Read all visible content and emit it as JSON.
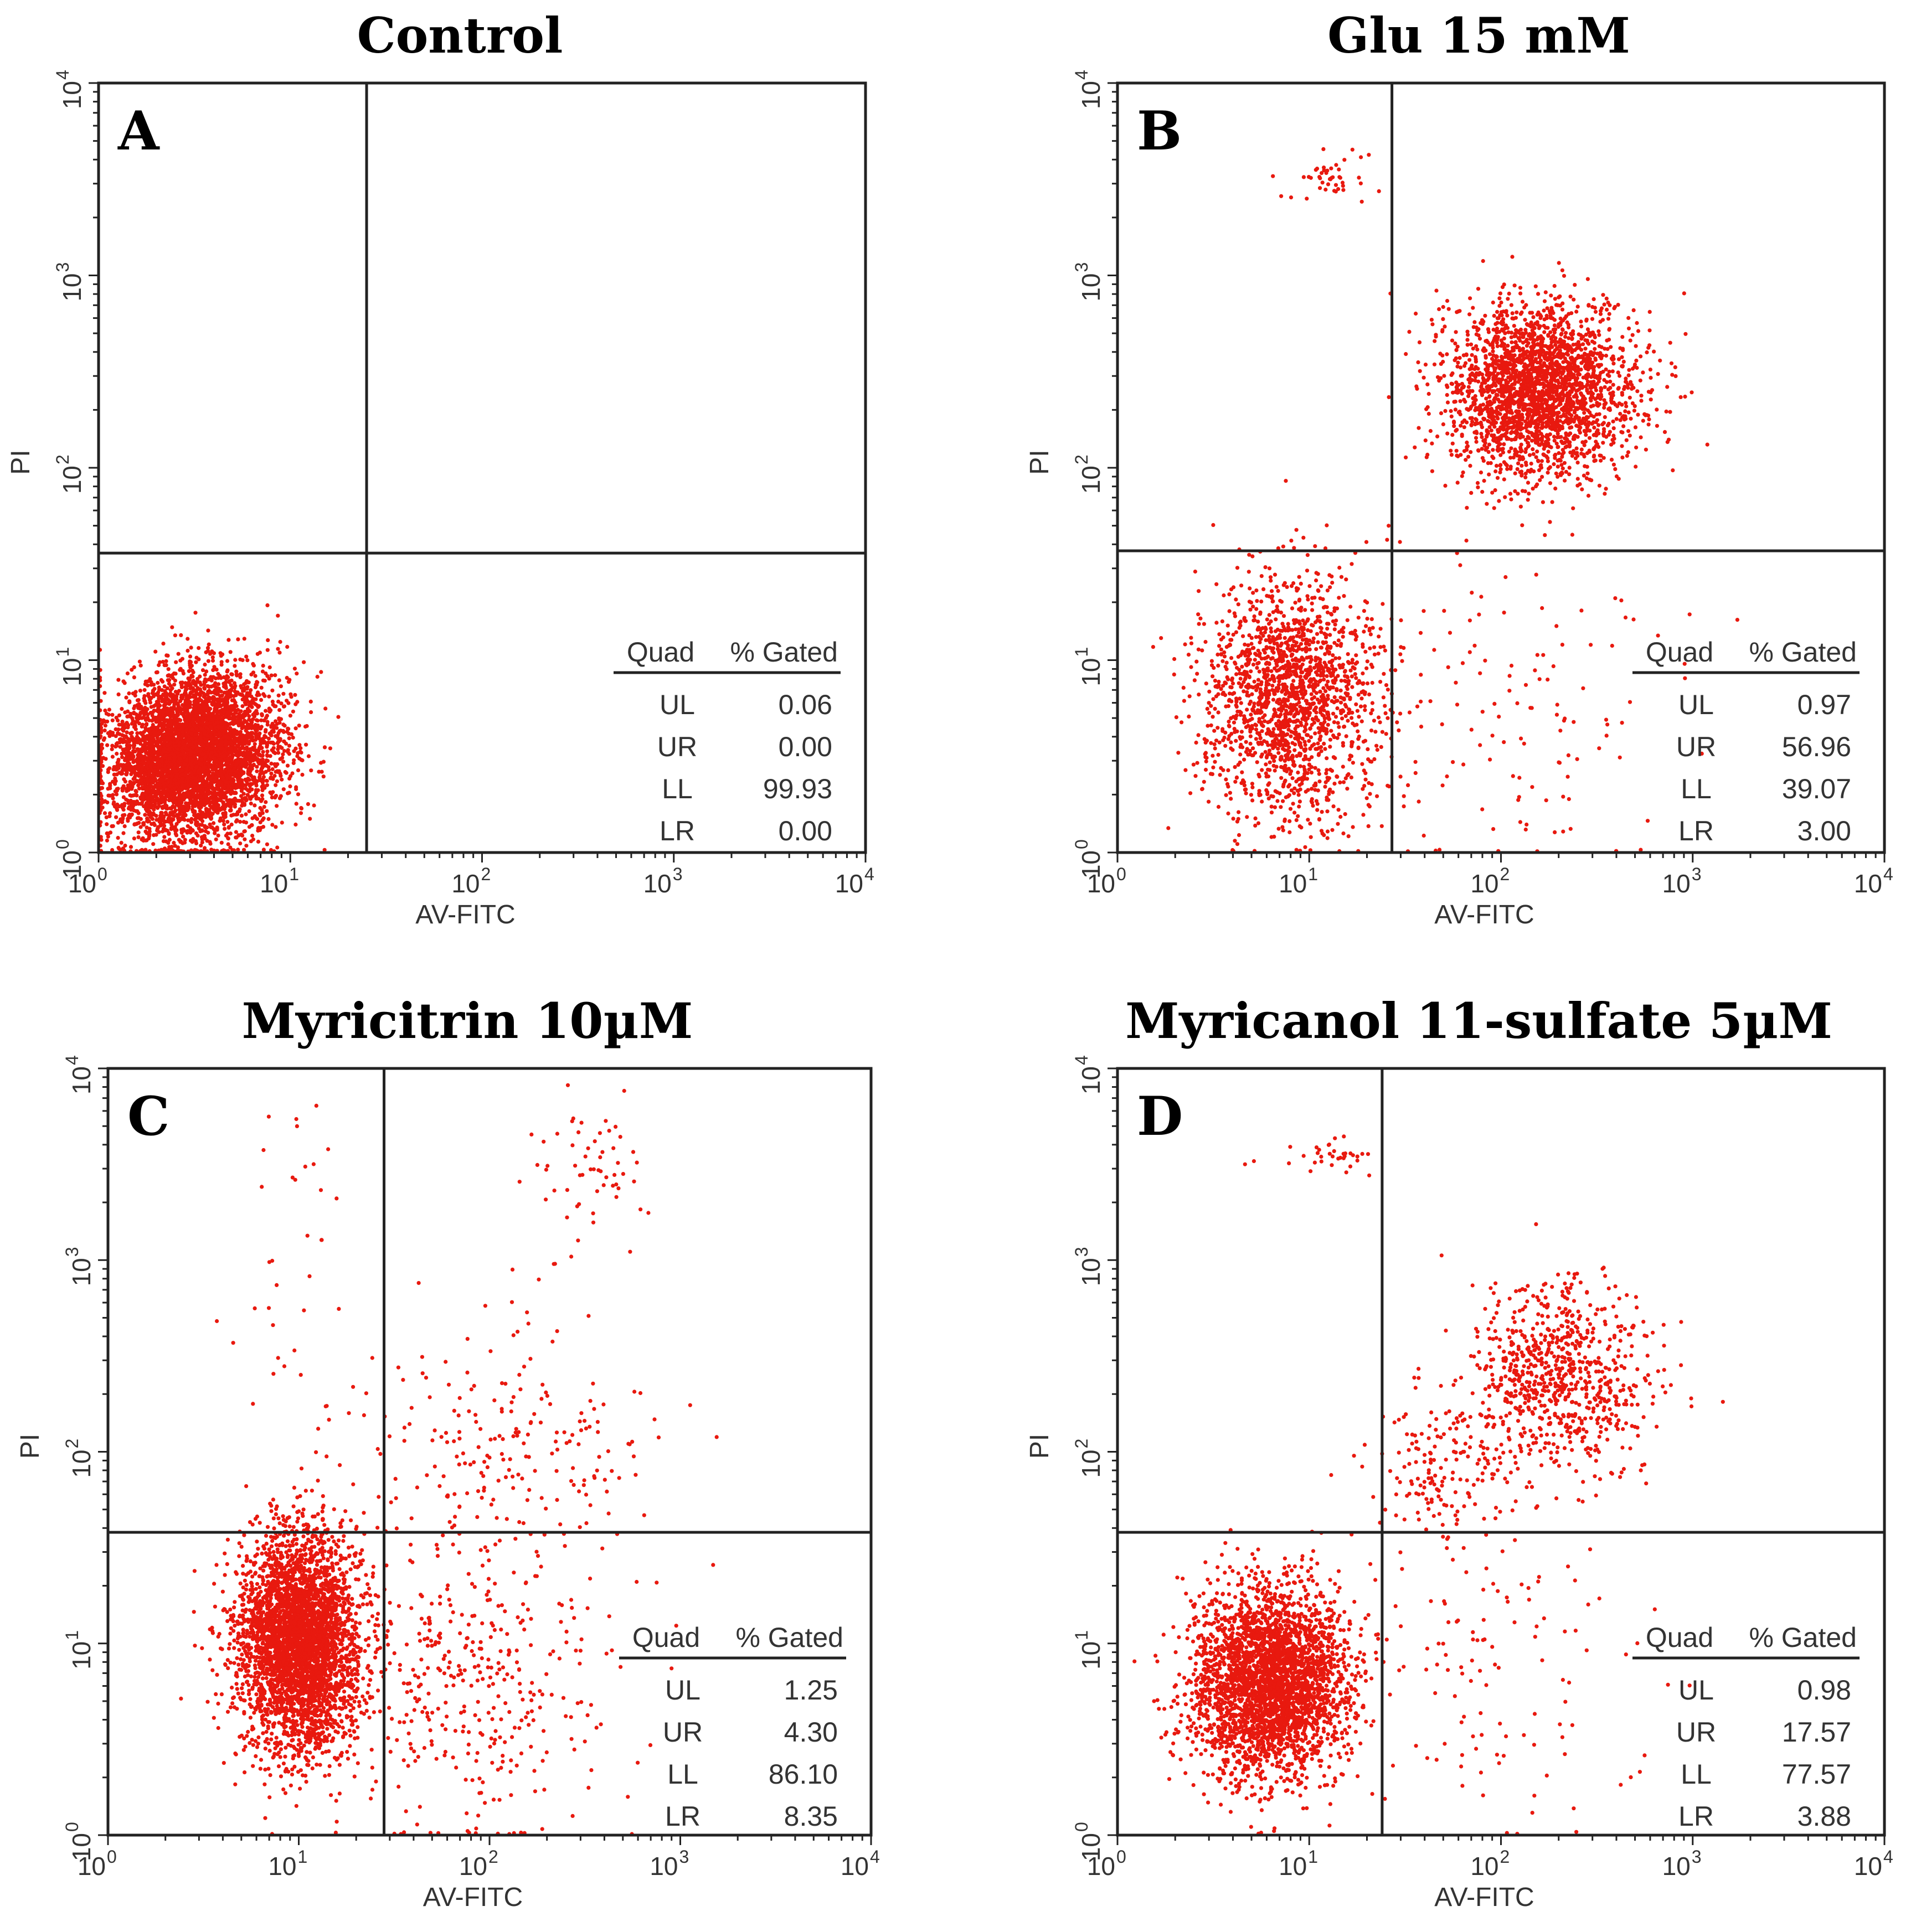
{
  "figure": {
    "x_axis_label": "AV-FITC",
    "y_axis_label": "PI",
    "tick_base": "10",
    "tick_exponents": [
      "0",
      "1",
      "2",
      "3",
      "4"
    ],
    "stats_headers": {
      "quad": "Quad",
      "gated": "% Gated"
    }
  },
  "chart_data": [
    {
      "type": "scatter",
      "panel": "A",
      "title": "Control",
      "xlabel": "AV-FITC",
      "ylabel": "PI",
      "xscale": "log",
      "yscale": "log",
      "xlim": [
        1,
        10000
      ],
      "ylim": [
        1,
        10000
      ],
      "gate_x": 25,
      "gate_y": 36,
      "dot_color": "#e8190f",
      "quadrants": [
        {
          "quad": "UL",
          "percent_gated": "0.06"
        },
        {
          "quad": "UR",
          "percent_gated": "0.00"
        },
        {
          "quad": "LL",
          "percent_gated": "99.93"
        },
        {
          "quad": "LR",
          "percent_gated": "0.00"
        }
      ],
      "populations": [
        {
          "quadrant": "LL",
          "center_log": [
            0.5,
            0.5
          ],
          "spread_log": [
            0.23,
            0.2
          ],
          "rotation_deg": 35,
          "count": 5200
        }
      ]
    },
    {
      "type": "scatter",
      "panel": "B",
      "title": "Glu 15 mM",
      "xlabel": "AV-FITC",
      "ylabel": "PI",
      "xscale": "log",
      "yscale": "log",
      "xlim": [
        1,
        10000
      ],
      "ylim": [
        1,
        10000
      ],
      "gate_x": 27,
      "gate_y": 37,
      "dot_color": "#e8190f",
      "quadrants": [
        {
          "quad": "UL",
          "percent_gated": "0.97"
        },
        {
          "quad": "UR",
          "percent_gated": "56.96"
        },
        {
          "quad": "LL",
          "percent_gated": "39.07"
        },
        {
          "quad": "LR",
          "percent_gated": "3.00"
        }
      ],
      "populations": [
        {
          "quadrant": "UR",
          "center_log": [
            2.2,
            2.4
          ],
          "spread_log": [
            0.24,
            0.22
          ],
          "rotation_deg": 0,
          "count": 2600
        },
        {
          "quadrant": "LL",
          "center_log": [
            0.9,
            0.8
          ],
          "spread_log": [
            0.22,
            0.3
          ],
          "rotation_deg": 0,
          "count": 1800
        },
        {
          "quadrant": "UL",
          "center_log": [
            1.1,
            3.5
          ],
          "spread_log": [
            0.12,
            0.06
          ],
          "rotation_deg": 0,
          "count": 45
        },
        {
          "quadrant": "LR",
          "center_log": [
            2.0,
            0.8
          ],
          "spread_log": [
            0.4,
            0.5
          ],
          "rotation_deg": 0,
          "count": 140
        }
      ]
    },
    {
      "type": "scatter",
      "panel": "C",
      "title": "Myricitrin 10µM",
      "xlabel": "AV-FITC",
      "ylabel": "PI",
      "xscale": "log",
      "yscale": "log",
      "xlim": [
        1,
        10000
      ],
      "ylim": [
        1,
        10000
      ],
      "gate_x": 28,
      "gate_y": 38,
      "dot_color": "#e8190f",
      "quadrants": [
        {
          "quad": "UL",
          "percent_gated": "1.25"
        },
        {
          "quad": "UR",
          "percent_gated": "4.30"
        },
        {
          "quad": "LL",
          "percent_gated": "86.10"
        },
        {
          "quad": "LR",
          "percent_gated": "8.35"
        }
      ],
      "populations": [
        {
          "quadrant": "LL",
          "center_log": [
            1.0,
            1.0
          ],
          "spread_log": [
            0.16,
            0.28
          ],
          "rotation_deg": 0,
          "count": 3800
        },
        {
          "quadrant": "LR",
          "center_log": [
            1.9,
            0.8
          ],
          "spread_log": [
            0.35,
            0.4
          ],
          "rotation_deg": 0,
          "count": 380
        },
        {
          "quadrant": "UR",
          "center_log": [
            2.1,
            2.0
          ],
          "spread_log": [
            0.4,
            0.3
          ],
          "rotation_deg": 0,
          "count": 220
        },
        {
          "quadrant": "UR",
          "center_log": [
            2.5,
            3.5
          ],
          "spread_log": [
            0.15,
            0.22
          ],
          "rotation_deg": 0,
          "count": 60
        },
        {
          "quadrant": "UL",
          "center_log": [
            1.0,
            2.8
          ],
          "spread_log": [
            0.18,
            0.6
          ],
          "rotation_deg": 0,
          "count": 40
        }
      ]
    },
    {
      "type": "scatter",
      "panel": "D",
      "title": "Myricanol 11-sulfate 5µM",
      "xlabel": "AV-FITC",
      "ylabel": "PI",
      "xscale": "log",
      "yscale": "log",
      "xlim": [
        1,
        10000
      ],
      "ylim": [
        1,
        10000
      ],
      "gate_x": 24,
      "gate_y": 38,
      "dot_color": "#e8190f",
      "quadrants": [
        {
          "quad": "UL",
          "percent_gated": "0.98"
        },
        {
          "quad": "UR",
          "percent_gated": "17.57"
        },
        {
          "quad": "LL",
          "percent_gated": "77.57"
        },
        {
          "quad": "LR",
          "percent_gated": "3.88"
        }
      ],
      "populations": [
        {
          "quadrant": "LL",
          "center_log": [
            0.8,
            0.8
          ],
          "spread_log": [
            0.2,
            0.24
          ],
          "rotation_deg": 0,
          "count": 3300
        },
        {
          "quadrant": "UR",
          "center_log": [
            2.3,
            2.4
          ],
          "spread_log": [
            0.24,
            0.24
          ],
          "rotation_deg": 0,
          "count": 800
        },
        {
          "quadrant": "UR",
          "center_log": [
            1.7,
            1.9
          ],
          "spread_log": [
            0.2,
            0.2
          ],
          "rotation_deg": 0,
          "count": 160
        },
        {
          "quadrant": "LR",
          "center_log": [
            2.0,
            0.9
          ],
          "spread_log": [
            0.4,
            0.45
          ],
          "rotation_deg": 0,
          "count": 120
        },
        {
          "quadrant": "UL",
          "center_log": [
            1.1,
            3.55
          ],
          "spread_log": [
            0.12,
            0.05
          ],
          "rotation_deg": 0,
          "count": 35
        }
      ]
    }
  ]
}
